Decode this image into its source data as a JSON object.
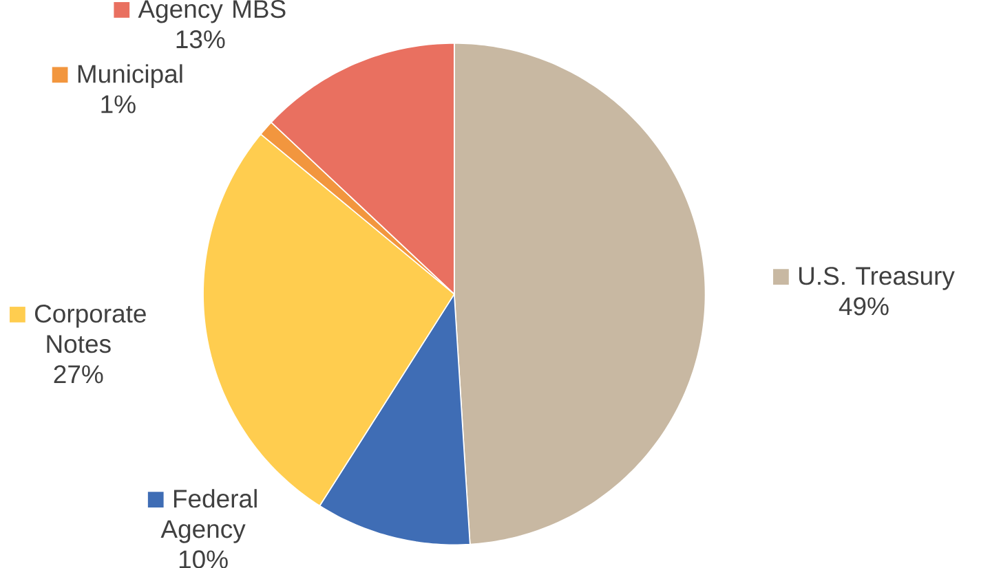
{
  "chart_data": {
    "type": "pie",
    "categories": [
      "U.S. Treasury",
      "Federal Agency",
      "Corporate Notes",
      "Municipal",
      "Agency MBS"
    ],
    "values": [
      49,
      10,
      27,
      1,
      13
    ],
    "value_labels": [
      "49%",
      "10%",
      "27%",
      "1%",
      "13%"
    ],
    "colors": [
      "#c8b8a2",
      "#3f6db5",
      "#ffcd4f",
      "#f2963e",
      "#e97060"
    ],
    "legend": "top right"
  }
}
